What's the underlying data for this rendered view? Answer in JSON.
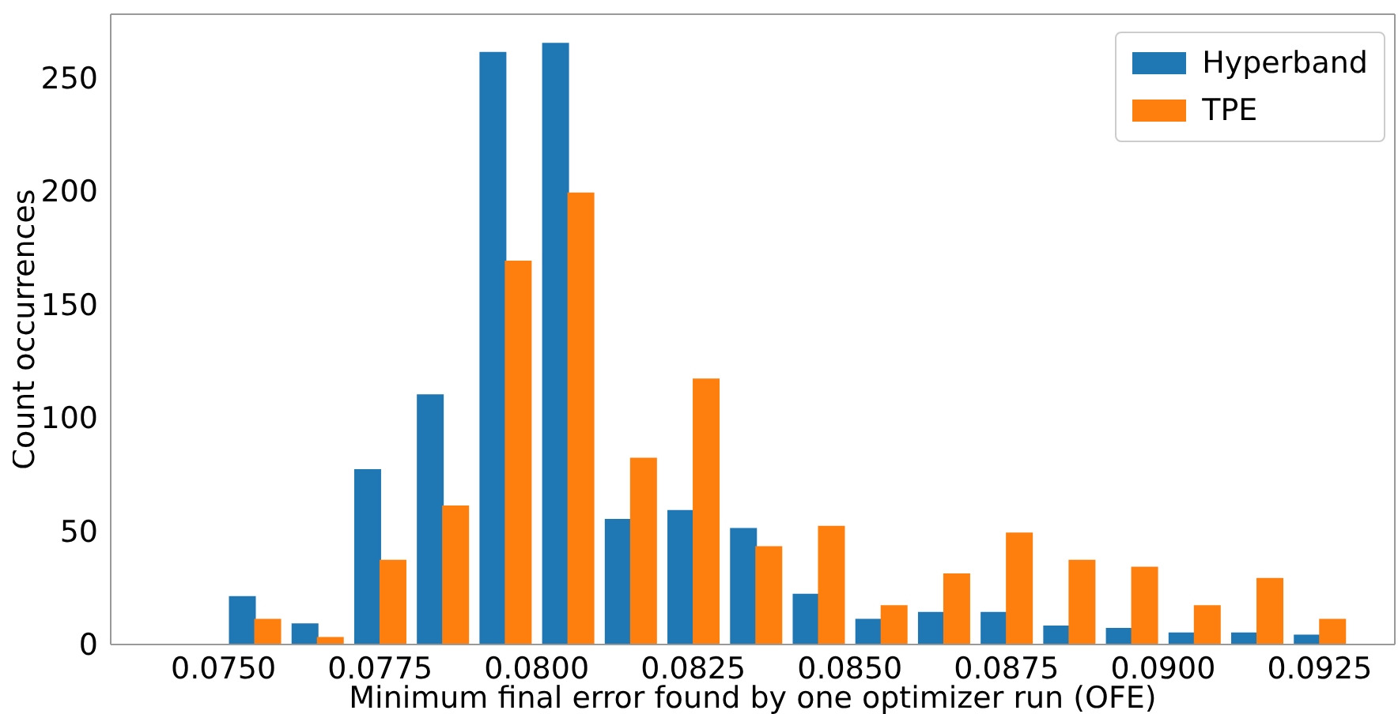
{
  "chart_data": {
    "type": "histogram",
    "xlabel": "Minimum final error found by one optimizer run (OFE)",
    "ylabel": "Count occurrences",
    "bins": [
      0.075,
      0.076,
      0.077,
      0.078,
      0.079,
      0.08,
      0.081,
      0.082,
      0.083,
      0.084,
      0.085,
      0.086,
      0.087,
      0.088,
      0.089,
      0.09,
      0.091,
      0.092,
      0.093
    ],
    "series": [
      {
        "name": "Hyperband",
        "color": "#1f77b4",
        "values": [
          21,
          9,
          77,
          110,
          261,
          265,
          55,
          59,
          51,
          22,
          11,
          14,
          14,
          8,
          7,
          5,
          5,
          4
        ]
      },
      {
        "name": "TPE",
        "color": "#ff7f0e",
        "values": [
          11,
          3,
          37,
          61,
          169,
          199,
          82,
          117,
          43,
          52,
          17,
          31,
          49,
          37,
          34,
          17,
          29,
          11
        ]
      }
    ],
    "xlim": [
      0.0732,
      0.0937
    ],
    "xticks": [
      {
        "value": 0.075,
        "label": "0.0750"
      },
      {
        "value": 0.0775,
        "label": "0.0775"
      },
      {
        "value": 0.08,
        "label": "0.0800"
      },
      {
        "value": 0.0825,
        "label": "0.0825"
      },
      {
        "value": 0.085,
        "label": "0.0850"
      },
      {
        "value": 0.0875,
        "label": "0.0875"
      },
      {
        "value": 0.09,
        "label": "0.0900"
      },
      {
        "value": 0.0925,
        "label": "0.0925"
      }
    ],
    "ylim": [
      0,
      278
    ],
    "yticks": [
      0,
      50,
      100,
      150,
      200,
      250
    ],
    "grid": false,
    "legend": "top right"
  }
}
